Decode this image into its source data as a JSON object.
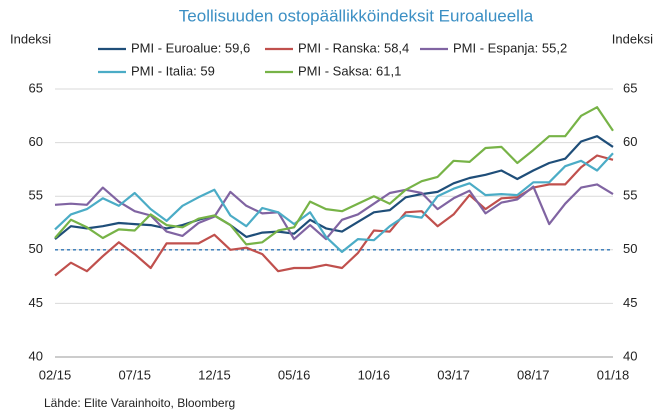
{
  "chart_data": {
    "type": "line",
    "title": "Teollisuuden ostopäällikköindeksit Euroalueella",
    "ylabel": "Indeksi",
    "y2label": "Indeksi",
    "source": "Lähde: Elite Varainhoito, Bloomberg",
    "categories": [
      "02/15",
      null,
      null,
      null,
      null,
      "07/15",
      null,
      null,
      null,
      null,
      "12/15",
      null,
      null,
      null,
      null,
      "05/16",
      null,
      null,
      null,
      null,
      "10/16",
      null,
      null,
      null,
      null,
      "03/17",
      null,
      null,
      null,
      null,
      "08/17",
      null,
      null,
      null,
      null,
      "01/18"
    ],
    "series": [
      {
        "name": "PMI - Euroalue: 59,6",
        "color": "#1f4e79",
        "values": [
          51.0,
          52.2,
          52.0,
          52.2,
          52.5,
          52.4,
          52.3,
          52.0,
          52.3,
          52.8,
          53.2,
          52.3,
          51.2,
          51.6,
          51.7,
          51.5,
          52.8,
          52.0,
          51.7,
          52.6,
          53.5,
          53.7,
          54.9,
          55.2,
          55.4,
          56.2,
          56.7,
          57.0,
          57.4,
          56.6,
          57.4,
          58.1,
          58.5,
          60.1,
          60.6,
          59.6
        ]
      },
      {
        "name": "PMI - Ranska: 58,4",
        "color": "#c0504d",
        "values": [
          47.6,
          48.8,
          48.0,
          49.4,
          50.7,
          49.6,
          48.3,
          50.6,
          50.6,
          50.6,
          51.4,
          50.0,
          50.2,
          49.6,
          48.0,
          48.3,
          48.3,
          48.6,
          48.3,
          49.7,
          51.8,
          51.7,
          53.5,
          53.6,
          52.2,
          53.3,
          55.1,
          53.8,
          54.8,
          54.9,
          55.8,
          56.1,
          56.1,
          57.7,
          58.8,
          58.4
        ]
      },
      {
        "name": "PMI - Espanja: 55,2",
        "color": "#8064a2",
        "values": [
          54.2,
          54.3,
          54.2,
          55.8,
          54.5,
          53.6,
          53.2,
          51.7,
          51.3,
          52.5,
          53.1,
          55.4,
          54.1,
          53.4,
          53.5,
          51.0,
          52.3,
          51.0,
          52.8,
          53.3,
          54.3,
          55.3,
          55.6,
          55.3,
          53.8,
          54.8,
          55.5,
          53.4,
          54.4,
          54.7,
          55.9,
          52.4,
          54.3,
          55.8,
          56.1,
          55.2
        ]
      },
      {
        "name": "PMI - Italia: 59",
        "color": "#4bacc6",
        "values": [
          51.9,
          53.3,
          53.8,
          54.8,
          54.1,
          55.3,
          53.8,
          52.7,
          54.1,
          54.9,
          55.6,
          53.2,
          52.2,
          53.9,
          53.5,
          52.4,
          53.5,
          51.2,
          49.8,
          51.0,
          50.9,
          52.2,
          53.2,
          53.0,
          55.0,
          55.7,
          56.2,
          55.1,
          55.2,
          55.1,
          56.3,
          56.3,
          57.8,
          58.3,
          57.4,
          59.0
        ]
      },
      {
        "name": "PMI - Saksa: 61,1",
        "color": "#77b347",
        "values": [
          51.1,
          52.8,
          52.1,
          51.1,
          51.9,
          51.8,
          53.3,
          52.3,
          52.1,
          52.9,
          53.2,
          52.3,
          50.5,
          50.7,
          51.8,
          52.1,
          54.5,
          53.8,
          53.6,
          54.3,
          55.0,
          54.3,
          55.6,
          56.4,
          56.8,
          58.3,
          58.2,
          59.5,
          59.6,
          58.1,
          59.3,
          60.6,
          60.6,
          62.5,
          63.3,
          61.1
        ]
      }
    ],
    "reference_line": {
      "value": 50,
      "color": "#2e75b6"
    },
    "ylim": [
      40,
      65
    ],
    "yticks": [
      40,
      45,
      50,
      55,
      60,
      65
    ],
    "y2lim": [
      40,
      65
    ],
    "y2ticks": [
      40,
      45,
      50,
      55,
      60,
      65
    ],
    "grid": true
  }
}
